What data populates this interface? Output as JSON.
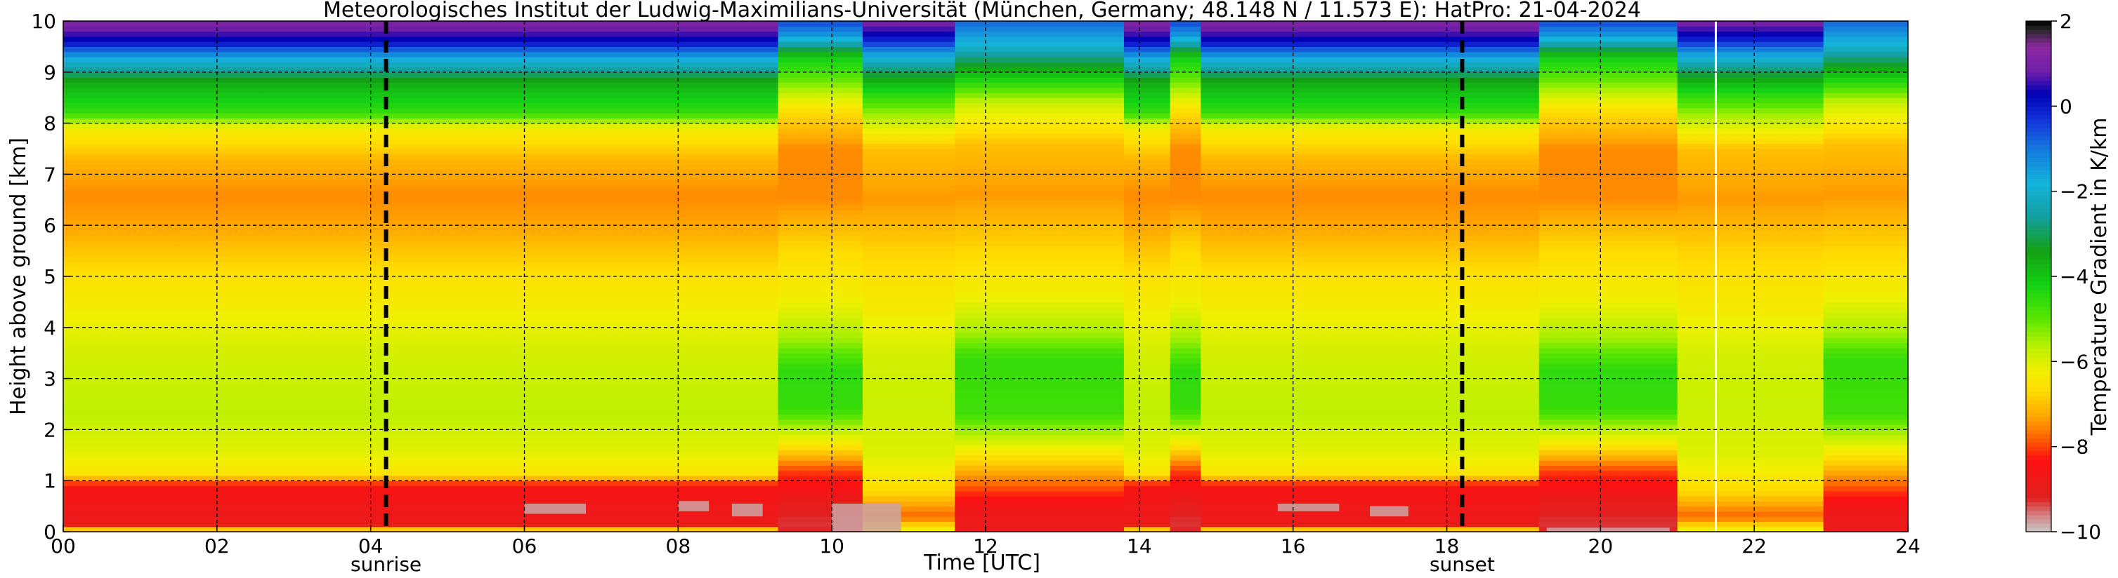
{
  "chart_data": {
    "type": "heatmap",
    "title": "Meteorologisches Institut der Ludwig-Maximilians-Universität (München, Germany; 48.148 N / 11.573 E):    HatPro: 21-04-2024",
    "xlabel": "Time [UTC]",
    "ylabel": "Height above ground [km]",
    "colorbar_label": "Temperature Gradient in K/km",
    "xlim": [
      0,
      24
    ],
    "ylim": [
      0,
      10
    ],
    "clim": [
      -10,
      2
    ],
    "x_ticks": [
      0,
      2,
      4,
      6,
      8,
      10,
      12,
      14,
      16,
      18,
      20,
      22,
      24
    ],
    "x_tick_labels": [
      "00",
      "02",
      "04",
      "06",
      "08",
      "10",
      "12",
      "14",
      "16",
      "18",
      "20",
      "22",
      "24"
    ],
    "y_ticks": [
      0,
      1,
      2,
      3,
      4,
      5,
      6,
      7,
      8,
      9,
      10
    ],
    "y_tick_labels": [
      "0",
      "1",
      "2",
      "3",
      "4",
      "5",
      "6",
      "7",
      "8",
      "9",
      "10"
    ],
    "colorbar_ticks": [
      2,
      0,
      -2,
      -4,
      -6,
      -8,
      -10
    ],
    "colorbar_tick_labels": [
      "2",
      "0",
      "−2",
      "−4",
      "−6",
      "−8",
      "−10"
    ],
    "grid": true,
    "grid_style": "dashed",
    "colormap": [
      {
        "value": -10,
        "color": "#c8c8c8"
      },
      {
        "value": -9.6,
        "color": "#d28080"
      },
      {
        "value": -9.2,
        "color": "#e02020"
      },
      {
        "value": -8.3,
        "color": "#ff1010"
      },
      {
        "value": -7.7,
        "color": "#ff7000"
      },
      {
        "value": -7.3,
        "color": "#ffa500"
      },
      {
        "value": -6.7,
        "color": "#ffdc00"
      },
      {
        "value": -6.2,
        "color": "#f0f000"
      },
      {
        "value": -5.6,
        "color": "#b4f000"
      },
      {
        "value": -5.0,
        "color": "#5ae600"
      },
      {
        "value": -4.2,
        "color": "#14d214"
      },
      {
        "value": -3.4,
        "color": "#14a014"
      },
      {
        "value": -2.6,
        "color": "#14a0a0"
      },
      {
        "value": -1.8,
        "color": "#14b4dc"
      },
      {
        "value": -1.0,
        "color": "#1478dc"
      },
      {
        "value": -0.3,
        "color": "#1432dc"
      },
      {
        "value": 0.3,
        "color": "#0000b4"
      },
      {
        "value": 0.8,
        "color": "#6e1eaa"
      },
      {
        "value": 1.4,
        "color": "#8c28a0"
      },
      {
        "value": 1.8,
        "color": "#282828"
      },
      {
        "value": 2.0,
        "color": "#000000"
      }
    ],
    "profiles": [
      {
        "name": "night",
        "levels": [
          {
            "h": 0.0,
            "v": -5.0
          },
          {
            "h": 0.1,
            "v": -9.0
          },
          {
            "h": 0.3,
            "v": -8.8
          },
          {
            "h": 0.9,
            "v": -8.5
          },
          {
            "h": 1.1,
            "v": -6.6
          },
          {
            "h": 1.5,
            "v": -6.1
          },
          {
            "h": 2.3,
            "v": -5.7
          },
          {
            "h": 3.5,
            "v": -5.9
          },
          {
            "h": 4.2,
            "v": -6.2
          },
          {
            "h": 5.0,
            "v": -6.6
          },
          {
            "h": 6.0,
            "v": -7.3
          },
          {
            "h": 6.6,
            "v": -7.5
          },
          {
            "h": 7.3,
            "v": -7.1
          },
          {
            "h": 7.9,
            "v": -6.3
          },
          {
            "h": 8.2,
            "v": -4.6
          },
          {
            "h": 8.8,
            "v": -3.6
          },
          {
            "h": 9.1,
            "v": -2.4
          },
          {
            "h": 9.4,
            "v": -1.0
          },
          {
            "h": 9.6,
            "v": 0.2
          },
          {
            "h": 10.0,
            "v": 1.2
          }
        ]
      },
      {
        "name": "cloud",
        "levels": [
          {
            "h": 0.0,
            "v": -9.2
          },
          {
            "h": 0.2,
            "v": -9.3
          },
          {
            "h": 0.6,
            "v": -8.9
          },
          {
            "h": 1.2,
            "v": -8.0
          },
          {
            "h": 1.8,
            "v": -6.2
          },
          {
            "h": 2.4,
            "v": -4.6
          },
          {
            "h": 3.2,
            "v": -4.5
          },
          {
            "h": 3.8,
            "v": -5.5
          },
          {
            "h": 4.5,
            "v": -6.2
          },
          {
            "h": 5.5,
            "v": -6.7
          },
          {
            "h": 6.5,
            "v": -7.5
          },
          {
            "h": 7.5,
            "v": -7.5
          },
          {
            "h": 8.2,
            "v": -6.7
          },
          {
            "h": 8.8,
            "v": -5.2
          },
          {
            "h": 9.3,
            "v": -4.1
          },
          {
            "h": 9.7,
            "v": -1.5
          },
          {
            "h": 10.0,
            "v": -0.5
          }
        ]
      },
      {
        "name": "midday",
        "levels": [
          {
            "h": 0.0,
            "v": -8.9
          },
          {
            "h": 0.5,
            "v": -8.7
          },
          {
            "h": 1.0,
            "v": -7.6
          },
          {
            "h": 1.6,
            "v": -6.3
          },
          {
            "h": 2.3,
            "v": -4.7
          },
          {
            "h": 3.4,
            "v": -4.6
          },
          {
            "h": 3.9,
            "v": -5.5
          },
          {
            "h": 4.6,
            "v": -6.2
          },
          {
            "h": 5.6,
            "v": -6.8
          },
          {
            "h": 6.6,
            "v": -7.4
          },
          {
            "h": 7.6,
            "v": -7.0
          },
          {
            "h": 8.4,
            "v": -5.8
          },
          {
            "h": 9.0,
            "v": -3.8
          },
          {
            "h": 9.5,
            "v": -2.0
          },
          {
            "h": 10.0,
            "v": -0.8
          }
        ]
      },
      {
        "name": "transition",
        "levels": [
          {
            "h": 0.0,
            "v": -6.0
          },
          {
            "h": 0.3,
            "v": -7.8
          },
          {
            "h": 0.8,
            "v": -6.7
          },
          {
            "h": 1.5,
            "v": -6.0
          },
          {
            "h": 2.5,
            "v": -5.8
          },
          {
            "h": 3.5,
            "v": -5.9
          },
          {
            "h": 4.5,
            "v": -6.4
          },
          {
            "h": 5.5,
            "v": -6.8
          },
          {
            "h": 6.5,
            "v": -7.4
          },
          {
            "h": 7.5,
            "v": -7.0
          },
          {
            "h": 8.2,
            "v": -5.4
          },
          {
            "h": 8.8,
            "v": -3.8
          },
          {
            "h": 9.3,
            "v": -1.8
          },
          {
            "h": 9.7,
            "v": 0.2
          },
          {
            "h": 10.0,
            "v": 1.0
          }
        ]
      }
    ],
    "time_blocks": [
      {
        "start": 0.0,
        "end": 1.5,
        "profile": "night"
      },
      {
        "start": 1.5,
        "end": 2.6,
        "profile": "night"
      },
      {
        "start": 2.6,
        "end": 6.0,
        "profile": "night"
      },
      {
        "start": 6.0,
        "end": 8.0,
        "profile": "night"
      },
      {
        "start": 8.0,
        "end": 9.3,
        "profile": "night"
      },
      {
        "start": 9.3,
        "end": 10.4,
        "profile": "cloud"
      },
      {
        "start": 10.4,
        "end": 11.6,
        "profile": "transition"
      },
      {
        "start": 11.6,
        "end": 13.8,
        "profile": "midday"
      },
      {
        "start": 13.8,
        "end": 14.4,
        "profile": "night"
      },
      {
        "start": 14.4,
        "end": 14.8,
        "profile": "cloud"
      },
      {
        "start": 14.8,
        "end": 19.2,
        "profile": "night"
      },
      {
        "start": 19.2,
        "end": 21.0,
        "profile": "cloud"
      },
      {
        "start": 21.0,
        "end": 22.9,
        "profile": "transition"
      },
      {
        "start": 22.9,
        "end": 24.0,
        "profile": "midday"
      }
    ],
    "cold_patches": [
      {
        "t0": 6.0,
        "t1": 6.8,
        "h0": 0.35,
        "h1": 0.55
      },
      {
        "t0": 8.0,
        "t1": 8.4,
        "h0": 0.4,
        "h1": 0.6
      },
      {
        "t0": 8.7,
        "t1": 9.1,
        "h0": 0.3,
        "h1": 0.55
      },
      {
        "t0": 10.0,
        "t1": 10.9,
        "h0": 0.0,
        "h1": 0.55
      },
      {
        "t0": 15.8,
        "t1": 16.6,
        "h0": 0.4,
        "h1": 0.55
      },
      {
        "t0": 17.0,
        "t1": 17.5,
        "h0": 0.3,
        "h1": 0.5
      },
      {
        "t0": 19.3,
        "t1": 20.9,
        "h0": 0.0,
        "h1": 0.08
      }
    ],
    "vertical_markers": [
      {
        "x": 4.2,
        "label": "sunrise"
      },
      {
        "x": 18.2,
        "label": "sunset"
      }
    ],
    "data_gap_lines": [
      21.5
    ]
  }
}
